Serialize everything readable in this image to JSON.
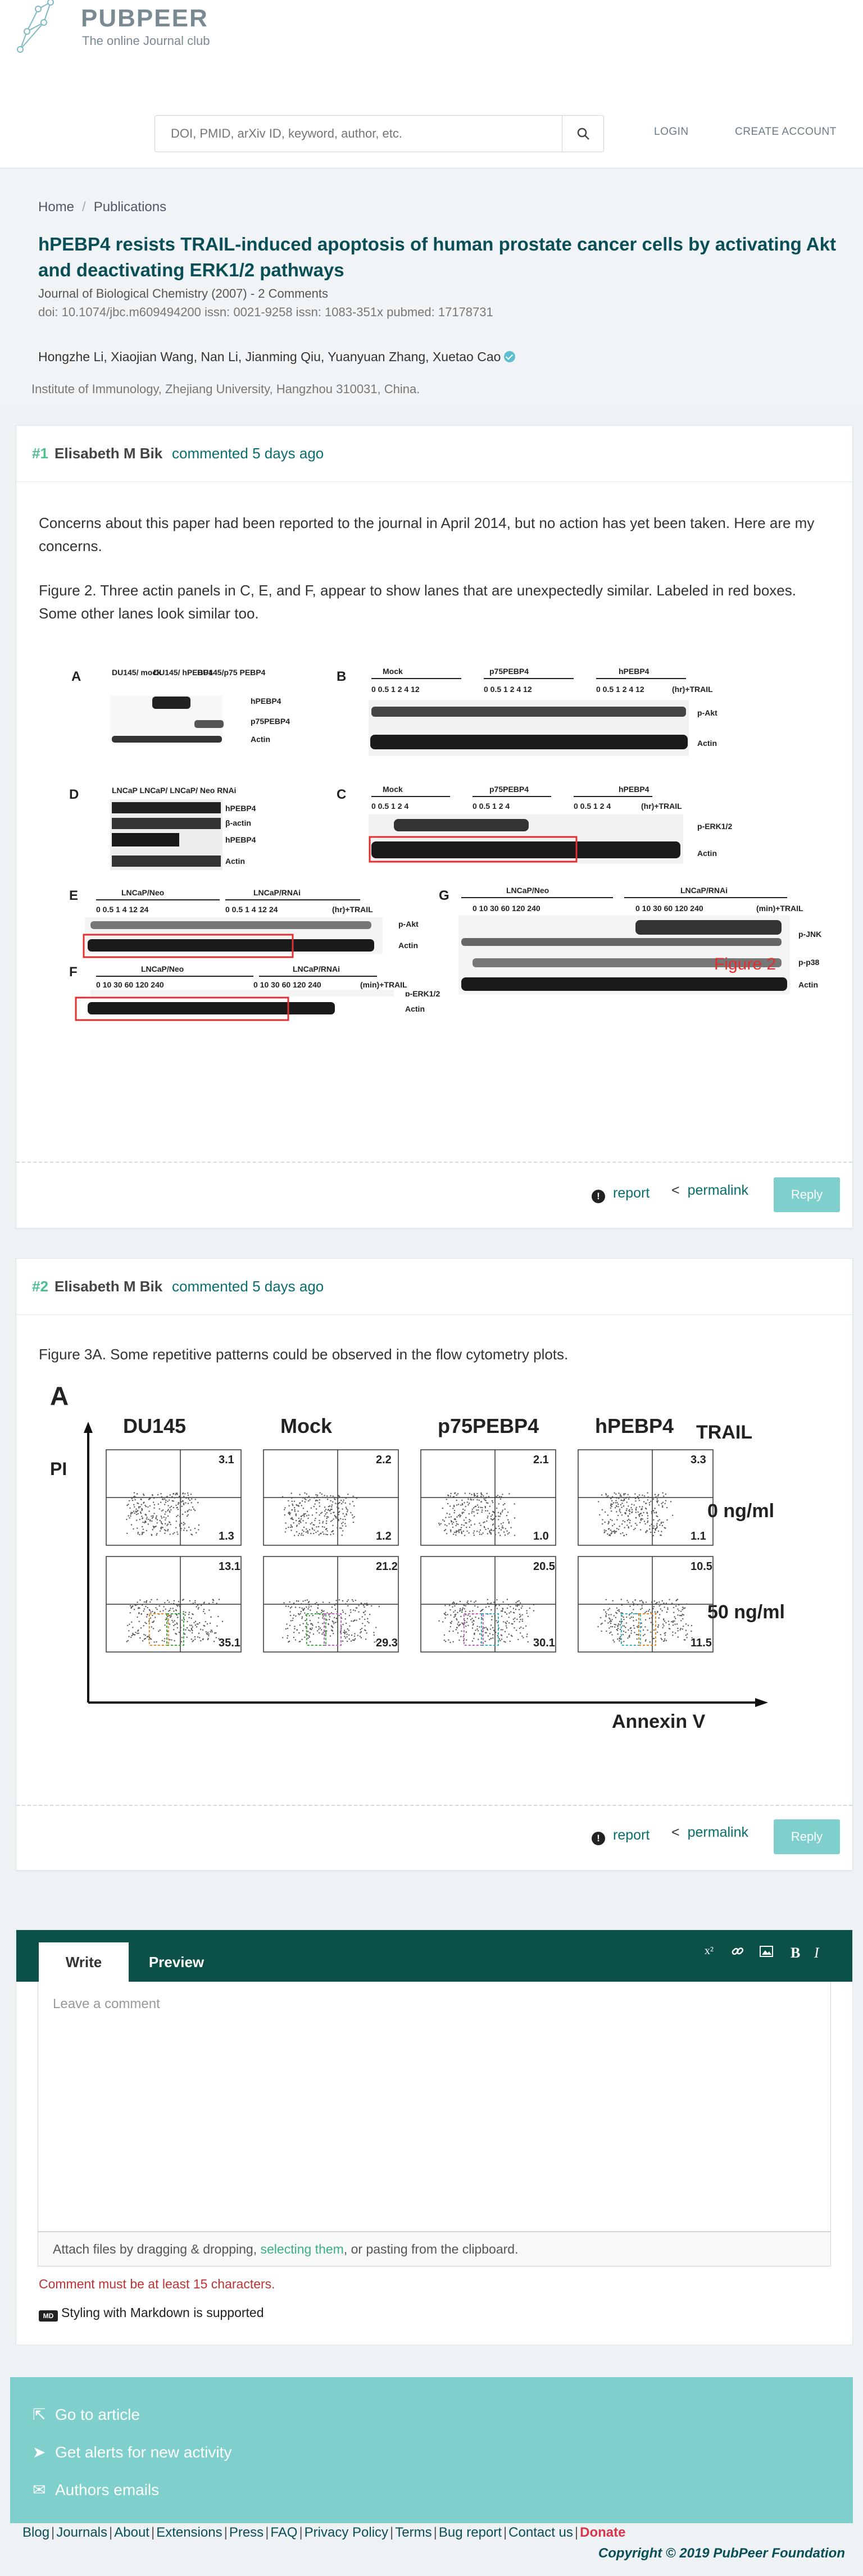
{
  "site": {
    "name": "PUBPEER",
    "tagline": "The online Journal club",
    "search_placeholder": "DOI, PMID, arXiv ID, keyword, author, etc.",
    "nav": {
      "login": "LOGIN",
      "create_account": "CREATE ACCOUNT"
    }
  },
  "breadcrumb": {
    "home": "Home",
    "current": "Publications"
  },
  "paper": {
    "title": "hPEBP4 resists TRAIL-induced apoptosis of human prostate cancer cells by activating Akt and deactivating ERK1/2 pathways",
    "journal": "Journal of Biological Chemistry (2007) - 2 Comments",
    "ids": "doi: 10.1074/jbc.m609494200   issn: 0021-9258   issn: 1083-351x   pubmed: 17178731",
    "authors": "Hongzhe Li, Xiaojian Wang, Nan Li, Jianming Qiu, Yuanyuan Zhang, Xuetao Cao",
    "institution": "Institute of Immunology, Zhejiang University, Hangzhou 310031, China."
  },
  "comments": [
    {
      "num": "#1",
      "author": "Elisabeth M Bik",
      "date": "commented 5 days ago",
      "p1": "Concerns about this paper had been reported to the journal in April 2014, but no action has yet been taken. Here are my concerns.",
      "p2": "Figure 2. Three actin panels in C, E, and F, appear to show lanes that are unexpectedly similar. Labeled in red boxes. Some other lanes look similar too.",
      "figure": {
        "panel_letters": [
          "A",
          "B",
          "C",
          "D",
          "E",
          "F",
          "G"
        ],
        "caption": "Figure 2",
        "A_cols": [
          "DU145/ mock",
          "DU145/ hPEBP4",
          "DU145/p75 PEBP4"
        ],
        "A_rows": [
          "hPEBP4",
          "p75PEBP4",
          "Actin"
        ],
        "B_groups": [
          "Mock",
          "p75PEBP4",
          "hPEBP4"
        ],
        "B_times": "0  0.5  1  2  4  12",
        "B_rows": [
          "p-Akt",
          "Actin"
        ],
        "trail_hr": "(hr)+TRAIL",
        "D_cols": "LNCaP LNCaP/ LNCaP/ Neo RNAi",
        "D_rows": [
          "hPEBP4",
          "β-actin",
          "hPEBP4",
          "Actin"
        ],
        "C_times": "0  0.5  1  2  4",
        "C_rows": [
          "p-ERK1/2",
          "Actin"
        ],
        "E_groups": [
          "LNCaP/Neo",
          "LNCaP/RNAi"
        ],
        "E_times": "0  0.5  1  4  12  24",
        "E_rows": [
          "p-Akt",
          "Actin"
        ],
        "G_groups": [
          "LNCaP/Neo",
          "LNCaP/RNAi"
        ],
        "G_times": "0  10  30  60  120  240",
        "G_rows": [
          "p-JNK",
          "p-p38",
          "Actin"
        ],
        "trail_min": "(min)+TRAIL",
        "F_groups": [
          "LNCaP/Neo",
          "LNCaP/RNAi"
        ],
        "F_times": "0  10  30  60  120  240",
        "F_rows": [
          "p-ERK1/2",
          "Actin"
        ]
      },
      "actions": {
        "report": "report",
        "permalink": "permalink",
        "reply": "Reply"
      }
    },
    {
      "num": "#2",
      "author": "Elisabeth M Bik",
      "date": "commented 5 days ago",
      "p1": "Figure 3A. Some repetitive patterns could be observed in the flow cytometry plots.",
      "figure": {
        "panel": "A",
        "y_axis": "PI",
        "x_axis": "Annexin V",
        "columns": [
          "DU145",
          "Mock",
          "p75PEBP4",
          "hPEBP4"
        ],
        "trail_label": "TRAIL",
        "rows": [
          "0 ng/ml",
          "50 ng/ml"
        ],
        "top_values": [
          [
            "3.1",
            "1.3"
          ],
          [
            "2.2",
            "1.2"
          ],
          [
            "2.1",
            "1.0"
          ],
          [
            "3.3",
            "1.1"
          ]
        ],
        "bottom_values": [
          [
            "13.1",
            "35.1"
          ],
          [
            "21.2",
            "29.3"
          ],
          [
            "20.5",
            "30.1"
          ],
          [
            "10.5",
            "11.5"
          ]
        ]
      },
      "actions": {
        "report": "report",
        "permalink": "permalink",
        "reply": "Reply"
      }
    }
  ],
  "editor": {
    "tab_write": "Write",
    "tab_preview": "Preview",
    "placeholder": "Leave a comment",
    "attach_pre": "Attach files by dragging & dropping, ",
    "attach_link": "selecting them",
    "attach_post": ", or pasting from the clipboard.",
    "error": "Comment must be at least 15 characters.",
    "markdown": "Styling with Markdown is supported",
    "md_badge": "MD"
  },
  "footer": {
    "items": [
      "Go to article",
      "Get alerts for new activity",
      "Authors emails"
    ],
    "links": [
      "Blog",
      "Journals",
      "About",
      "Extensions",
      "Press",
      "FAQ",
      "Privacy Policy",
      "Terms",
      "Bug report",
      "Contact us"
    ],
    "donate": "Donate",
    "copyright": "Copyright © 2019 PubPeer Foundation"
  },
  "colors": {
    "teal_dark": "#0a4f57",
    "green": "#4cc08f",
    "footer_bg": "#7fd0cc",
    "red_box": "#e03030"
  }
}
